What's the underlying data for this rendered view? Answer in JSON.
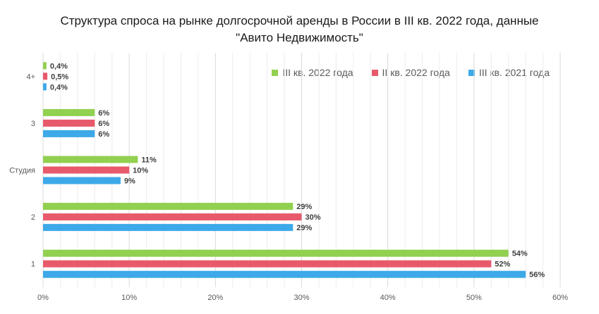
{
  "chart_data": {
    "type": "bar",
    "orientation": "horizontal",
    "title_line1": "Структура спроса на рынке долгосрочной аренды в России в III кв. 2022 года, данные",
    "title_line2": "\"Авито Недвижимость\"",
    "categories": [
      "1",
      "2",
      "Студия",
      "3",
      "4+"
    ],
    "series": [
      {
        "name": "III кв. 2022 года",
        "color": "#92d050",
        "values": [
          54,
          29,
          11,
          6,
          0.4
        ],
        "labels": [
          "54%",
          "29%",
          "11%",
          "6%",
          "0,4%"
        ]
      },
      {
        "name": "II кв. 2022 года",
        "color": "#e85a6b",
        "values": [
          52,
          30,
          10,
          6,
          0.5
        ],
        "labels": [
          "52%",
          "30%",
          "10%",
          "6%",
          "0,5%"
        ]
      },
      {
        "name": "III кв. 2021 года",
        "color": "#3da9e8",
        "values": [
          56,
          29,
          9,
          6,
          0.4
        ],
        "labels": [
          "56%",
          "29%",
          "9%",
          "6%",
          "0,4%"
        ]
      }
    ],
    "x_ticks": [
      "0%",
      "10%",
      "20%",
      "30%",
      "40%",
      "50%",
      "60%"
    ],
    "xlim": [
      0,
      60
    ],
    "grid": true,
    "legend_position": "top-right"
  }
}
